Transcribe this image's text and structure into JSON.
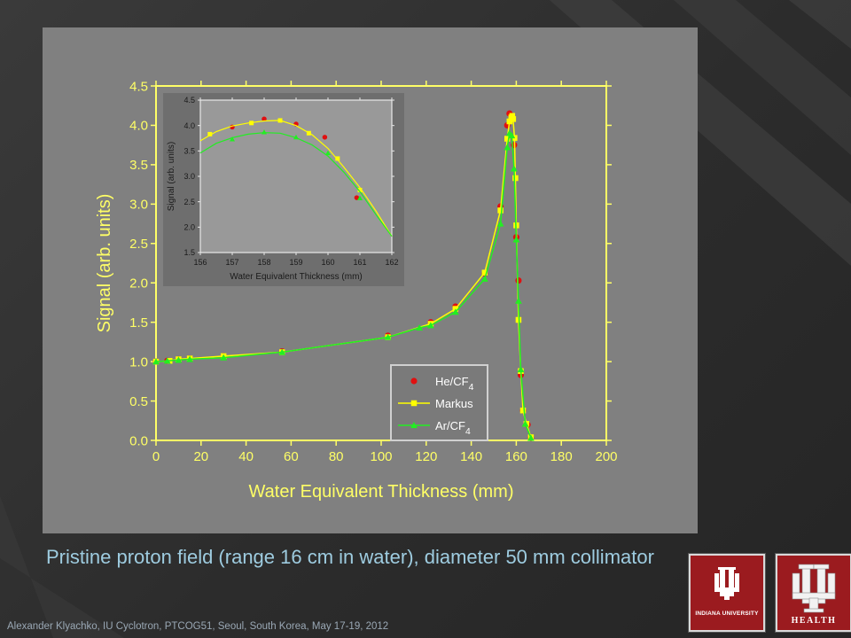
{
  "slide": {
    "caption": "Pristine proton field (range 16 cm in water), diameter 50 mm collimator",
    "footer": "Alexander Klyachko, IU Cyclotron, PTCOG51, Seoul, South Korea,  May 17-19, 2012",
    "logos": [
      {
        "name": "indiana-university-logo",
        "text": "INDIANA UNIVERSITY"
      },
      {
        "name": "iu-health-logo",
        "text": "HEALTH"
      }
    ],
    "colors": {
      "caption": "#9ecce0",
      "logo": "#9b1b1f",
      "panel": "#808080"
    }
  },
  "chart_data": [
    {
      "type": "line",
      "title": "",
      "xlabel": "Water Equivalent Thickness (mm)",
      "ylabel": "Signal (arb. units)",
      "xlim": [
        0,
        200
      ],
      "ylim": [
        0.0,
        4.5
      ],
      "xticks": [
        0,
        20,
        40,
        60,
        80,
        100,
        120,
        140,
        160,
        180,
        200
      ],
      "yticks": [
        "0.0",
        "0.5",
        "1.0",
        "1.5",
        "2.0",
        "2.5",
        "3.0",
        "3.5",
        "4.0",
        "4.5"
      ],
      "grid": false,
      "legend_position": "bottom-right",
      "series": [
        {
          "name": "He/CF4",
          "marker": "circle",
          "line": false,
          "color": "#e01010",
          "x": [
            0,
            5,
            10,
            15,
            30,
            56,
            103,
            122,
            133,
            146,
            153,
            156,
            157,
            158,
            159,
            160,
            161,
            162,
            163,
            165,
            166.5
          ],
          "y": [
            1.0,
            1.01,
            1.03,
            1.04,
            1.07,
            1.13,
            1.33,
            1.5,
            1.7,
            2.12,
            2.97,
            4.0,
            4.15,
            4.12,
            3.75,
            2.58,
            2.03,
            0.83,
            0.38,
            0.2,
            0.03
          ]
        },
        {
          "name": "Markus",
          "marker": "square",
          "line": true,
          "color": "#ffff00",
          "x": [
            0,
            6,
            10,
            15,
            30,
            56,
            103,
            122,
            133,
            146,
            153,
            156,
            157,
            157.8,
            158.2,
            158.6,
            159.2,
            159.6,
            160,
            161,
            162,
            163,
            164.5,
            166.5
          ],
          "y": [
            1.0,
            1.01,
            1.03,
            1.04,
            1.07,
            1.12,
            1.31,
            1.48,
            1.67,
            2.13,
            2.92,
            3.83,
            4.05,
            4.1,
            4.12,
            4.08,
            3.84,
            3.33,
            2.73,
            1.53,
            0.88,
            0.38,
            0.21,
            0.04
          ]
        },
        {
          "name": "Ar/CF4",
          "marker": "triangle",
          "line": true,
          "color": "#22ee22",
          "x": [
            0,
            5,
            10,
            15,
            30,
            56,
            103,
            117,
            122,
            133,
            146,
            153,
            156,
            157,
            158,
            159,
            160,
            161,
            162,
            164,
            166.5
          ],
          "y": [
            1.0,
            1.01,
            1.02,
            1.03,
            1.05,
            1.12,
            1.31,
            1.43,
            1.46,
            1.63,
            2.05,
            2.75,
            3.72,
            3.9,
            3.87,
            3.45,
            2.55,
            1.77,
            0.9,
            0.21,
            0.03
          ]
        }
      ]
    },
    {
      "type": "line",
      "title": "",
      "xlabel": "Water Equivalent Thickness (mm)",
      "ylabel": "Signal (arb. units)",
      "xlim": [
        156,
        162
      ],
      "ylim": [
        1.5,
        4.5
      ],
      "xticks": [
        156,
        157,
        158,
        159,
        160,
        161,
        162
      ],
      "yticks": [
        "1.5",
        "2.0",
        "2.5",
        "3.0",
        "3.5",
        "4.0",
        "4.5"
      ],
      "grid": false,
      "series": [
        {
          "name": "He/CF4",
          "marker": "circle",
          "line": false,
          "color": "#e01010",
          "x": [
            157.0,
            158.0,
            159.0,
            159.9,
            160.9
          ],
          "y": [
            3.97,
            4.13,
            4.03,
            3.77,
            2.58
          ]
        },
        {
          "name": "Markus",
          "marker": "square",
          "line": true,
          "color": "#ffff00",
          "x": [
            156.3,
            157.6,
            158.5,
            159.4,
            160.3,
            161.0
          ],
          "y": [
            3.83,
            4.05,
            4.1,
            3.85,
            3.35,
            2.73
          ],
          "curve_x": [
            156,
            156.5,
            157,
            157.5,
            158,
            158.5,
            159,
            159.5,
            160,
            160.5,
            161,
            161.5,
            162
          ],
          "curve_y": [
            3.7,
            3.88,
            3.99,
            4.05,
            4.09,
            4.1,
            4.0,
            3.82,
            3.55,
            3.18,
            2.78,
            2.32,
            1.82
          ]
        },
        {
          "name": "Ar/CF4",
          "marker": "triangle",
          "line": true,
          "color": "#22ee22",
          "x": [
            157.0,
            158.0,
            159.0,
            160.0,
            161.0
          ],
          "y": [
            3.73,
            3.87,
            3.77,
            3.46,
            2.57
          ],
          "curve_x": [
            156,
            156.5,
            157,
            157.5,
            158,
            158.5,
            159,
            159.5,
            160,
            160.5,
            161,
            161.5,
            162
          ],
          "curve_y": [
            3.46,
            3.65,
            3.76,
            3.83,
            3.86,
            3.85,
            3.76,
            3.62,
            3.4,
            3.08,
            2.7,
            2.25,
            1.82
          ]
        }
      ]
    }
  ]
}
